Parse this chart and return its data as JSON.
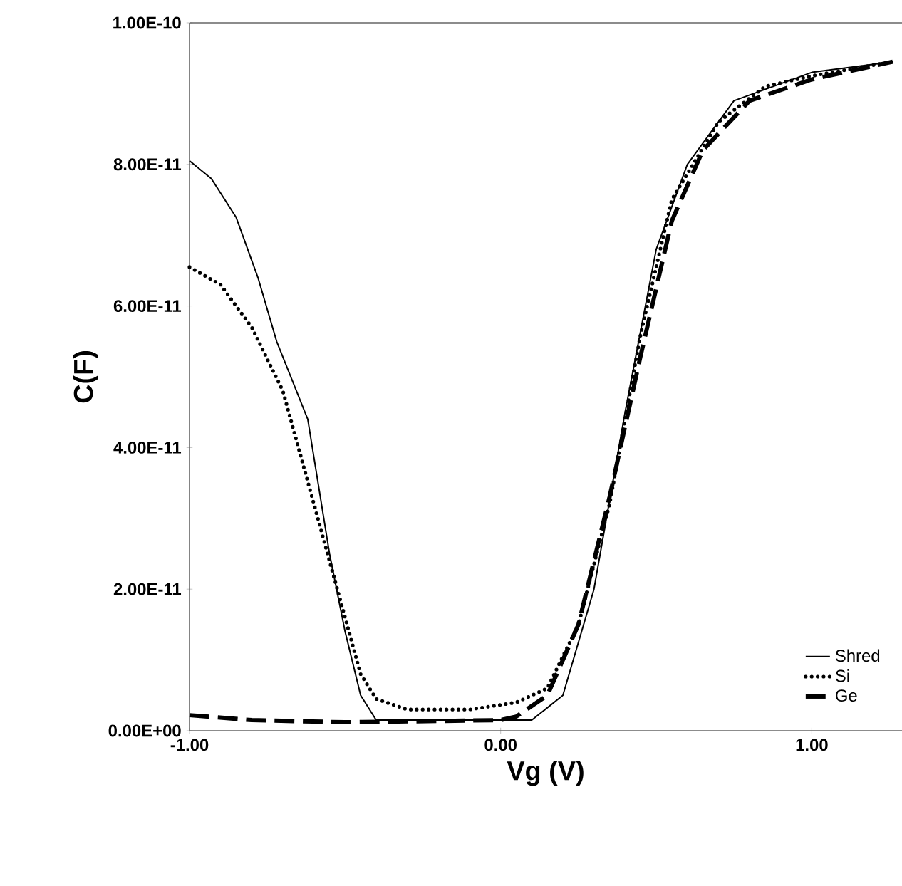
{
  "chart_data": {
    "type": "line",
    "xlabel": "Vg (V)",
    "ylabel": "C(F)",
    "xlim": [
      -1,
      1.29
    ],
    "ylim": [
      0,
      1e-10
    ],
    "xticks": [
      {
        "value": -1,
        "label": "-1.00"
      },
      {
        "value": 0,
        "label": "0.00"
      },
      {
        "value": 1,
        "label": "1.00"
      }
    ],
    "yticks": [
      {
        "value": 0,
        "label": "0.00E+00"
      },
      {
        "value": 2e-11,
        "label": "2.00E-11"
      },
      {
        "value": 4e-11,
        "label": "4.00E-11"
      },
      {
        "value": 6e-11,
        "label": "6.00E-11"
      },
      {
        "value": 8e-11,
        "label": "8.00E-11"
      },
      {
        "value": 1e-10,
        "label": "1.00E-10"
      }
    ],
    "grid": false,
    "legend": "bottom right",
    "marker": "none",
    "series": [
      {
        "name": "Shred",
        "color": "#000000",
        "line_style": "solid",
        "x": [
          -1,
          -0.93,
          -0.85,
          -0.78,
          -0.72,
          -0.62,
          -0.55,
          -0.5,
          -0.45,
          -0.4,
          0.1,
          0.2,
          0.3,
          0.4,
          0.5,
          0.6,
          0.75,
          1.0,
          1.26
        ],
        "values": [
          8.05e-11,
          7.8e-11,
          7.25e-11,
          6.4e-11,
          5.5e-11,
          4.4e-11,
          2.5e-11,
          1.4e-11,
          5e-12,
          1.5e-12,
          1.5e-12,
          5e-12,
          2e-11,
          4.5e-11,
          6.8e-11,
          8e-11,
          8.9e-11,
          9.3e-11,
          9.45e-11
        ]
      },
      {
        "name": "Si",
        "color": "#000000",
        "line_style": "dotted",
        "x": [
          -1,
          -0.9,
          -0.8,
          -0.7,
          -0.6,
          -0.5,
          -0.45,
          -0.4,
          -0.3,
          -0.1,
          0.05,
          0.15,
          0.25,
          0.35,
          0.45,
          0.55,
          0.7,
          0.85,
          1.0,
          1.26
        ],
        "values": [
          6.55e-11,
          6.3e-11,
          5.7e-11,
          4.8e-11,
          3.2e-11,
          1.6e-11,
          8e-12,
          4.5e-12,
          3e-12,
          3e-12,
          4e-12,
          6e-12,
          1.5e-11,
          3.2e-11,
          5.6e-11,
          7.5e-11,
          8.6e-11,
          9.1e-11,
          9.25e-11,
          9.45e-11
        ]
      },
      {
        "name": "Ge",
        "color": "#000000",
        "line_style": "dashed",
        "x": [
          -1,
          -0.8,
          -0.5,
          0,
          0.05,
          0.15,
          0.25,
          0.35,
          0.45,
          0.55,
          0.65,
          0.8,
          1.0,
          1.26
        ],
        "values": [
          2.2e-12,
          1.5e-12,
          1.2e-12,
          1.5e-12,
          2e-12,
          5e-12,
          1.5e-11,
          3.3e-11,
          5.3e-11,
          7.2e-11,
          8.2e-11,
          8.9e-11,
          9.2e-11,
          9.45e-11
        ]
      }
    ]
  }
}
